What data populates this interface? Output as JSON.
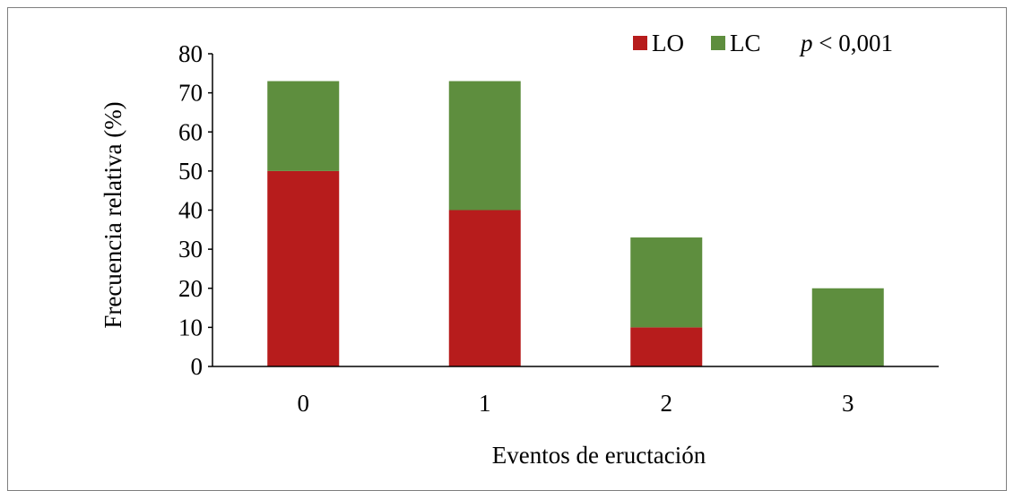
{
  "chart_data": {
    "type": "bar",
    "stacked": true,
    "categories": [
      "0",
      "1",
      "2",
      "3"
    ],
    "series": [
      {
        "name": "LO",
        "color": "#b71c1c",
        "values": [
          50,
          40,
          10,
          0
        ]
      },
      {
        "name": "LC",
        "color": "#5e8e3e",
        "values": [
          23,
          33,
          23,
          20
        ]
      }
    ],
    "xlabel": "Eventos de eructación",
    "ylabel": "Frecuencia relativa (%)",
    "ylim": [
      0,
      80
    ],
    "yticks": [
      "0",
      "10",
      "20",
      "30",
      "40",
      "50",
      "60",
      "70",
      "80"
    ],
    "grid": false,
    "legend_position": "top-right",
    "annotation": {
      "italic": "p",
      "rest": " < 0,001"
    }
  }
}
